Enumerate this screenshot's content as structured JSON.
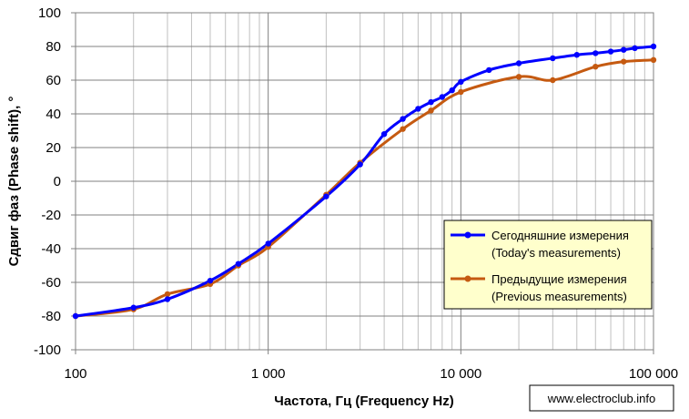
{
  "chart_data": {
    "type": "line",
    "xscale": "log",
    "xlim": [
      100,
      100000
    ],
    "ylim": [
      -100,
      100
    ],
    "ytick_step": 20,
    "x_ticks": [
      {
        "value": 100,
        "label": "100"
      },
      {
        "value": 1000,
        "label": "1 000"
      },
      {
        "value": 10000,
        "label": "10 000"
      },
      {
        "value": 100000,
        "label": "100 000"
      }
    ],
    "y_ticks": [
      "-100",
      "-80",
      "-60",
      "-40",
      "-20",
      "0",
      "20",
      "40",
      "60",
      "80",
      "100"
    ],
    "xlabel": "Частота, Гц (Frequency Hz)",
    "ylabel": "Сдвиг фаз (Phase shift), °",
    "grid": true,
    "legend_position": "right",
    "series": [
      {
        "name_line1": "Сегодняшние измерения",
        "name_line2": "(Today's measurements)",
        "color": "#0000ff",
        "x": [
          100,
          200,
          300,
          500,
          700,
          1000,
          2000,
          3000,
          4000,
          5000,
          6000,
          7000,
          8000,
          9000,
          10000,
          14000,
          20000,
          30000,
          40000,
          50000,
          60000,
          70000,
          80000,
          100000
        ],
        "values": [
          -80,
          -75,
          -70,
          -59,
          -49,
          -37,
          -9,
          10,
          28,
          37,
          43,
          47,
          50,
          54,
          59,
          66,
          70,
          73,
          75,
          76,
          77,
          78,
          79,
          80
        ]
      },
      {
        "name_line1": "Предыдущие измерения",
        "name_line2": "(Previous measurements)",
        "color": "#c55a11",
        "x": [
          100,
          200,
          300,
          500,
          700,
          1000,
          2000,
          3000,
          5000,
          7000,
          10000,
          20000,
          30000,
          50000,
          70000,
          100000
        ],
        "values": [
          -80,
          -76,
          -67,
          -61,
          -50,
          -39,
          -8,
          11,
          31,
          42,
          53,
          62,
          60,
          68,
          71,
          72
        ]
      }
    ],
    "watermark": "www.electroclub.info"
  }
}
